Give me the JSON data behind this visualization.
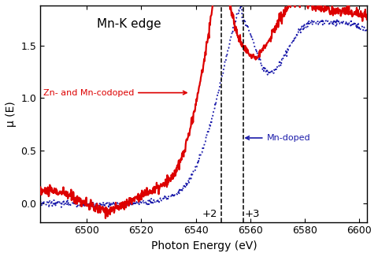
{
  "title": "Mn-K edge",
  "xlabel": "Photon Energy (eV)",
  "ylabel": "μ (E)",
  "xlim": [
    6483,
    6603
  ],
  "ylim": [
    -0.18,
    1.88
  ],
  "yticks": [
    0.0,
    0.5,
    1.0,
    1.5
  ],
  "xticks": [
    6500,
    6520,
    6540,
    6560,
    6580,
    6600
  ],
  "vline1_x": 6549.5,
  "vline2_x": 6557.5,
  "vline1_label": "+2",
  "vline2_label": "+3",
  "label_red": "Zn- and Mn-codoped",
  "label_blue": "Mn-doped",
  "red_color": "#dd0000",
  "blue_color": "#1a1aaa",
  "background_color": "#ffffff",
  "red_noise_seed": 10,
  "blue_noise_seed": 20
}
